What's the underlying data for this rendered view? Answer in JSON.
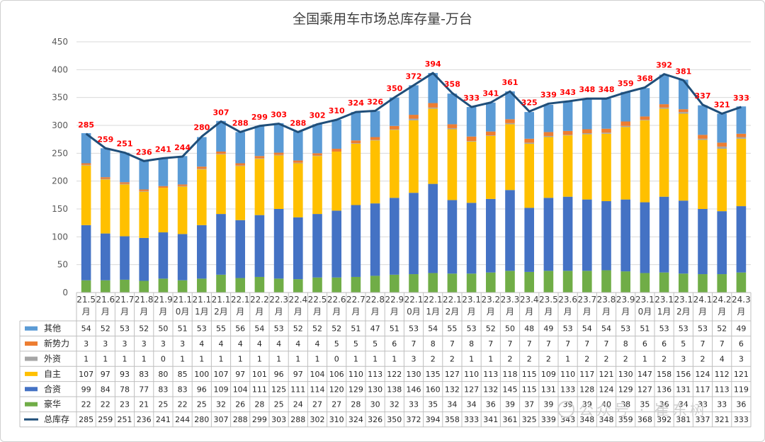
{
  "chart_data": {
    "type": "bar",
    "stacked": true,
    "title": "全国乘用车市场总库存量-万台",
    "ylim": [
      0,
      450
    ],
    "yticks": [
      0,
      50,
      100,
      150,
      200,
      250,
      300,
      350,
      400,
      450
    ],
    "grid": true,
    "legend_placement": "data table below chart",
    "categories": [
      [
        "21.5",
        "月"
      ],
      [
        "21.6",
        "月"
      ],
      [
        "21.7",
        "月"
      ],
      [
        "21.8",
        "月"
      ],
      [
        "21.9",
        "月"
      ],
      [
        "21.1",
        "0月"
      ],
      [
        "21.1",
        "1月"
      ],
      [
        "21.1",
        "2月"
      ],
      [
        "22.1",
        "月"
      ],
      [
        "22.2",
        "月"
      ],
      [
        "22.3",
        "月"
      ],
      [
        "22.4",
        "月"
      ],
      [
        "22.5",
        "月"
      ],
      [
        "22.6",
        "月"
      ],
      [
        "22.7",
        "月"
      ],
      [
        "22.8",
        "月"
      ],
      [
        "22.9",
        "月"
      ],
      [
        "22.1",
        "0月"
      ],
      [
        "22.1",
        "1月"
      ],
      [
        "22.1",
        "2月"
      ],
      [
        "23.1",
        "月"
      ],
      [
        "23.2",
        "月"
      ],
      [
        "23.3",
        "月"
      ],
      [
        "23.4",
        "月"
      ],
      [
        "23.5",
        "月"
      ],
      [
        "23.6",
        "月"
      ],
      [
        "23.7",
        "月"
      ],
      [
        "23.8",
        "月"
      ],
      [
        "23.9",
        "月"
      ],
      [
        "23.1",
        "0月"
      ],
      [
        "23.1",
        "1月"
      ],
      [
        "23.1",
        "2月"
      ],
      [
        "24.1",
        "月"
      ],
      [
        "24.2",
        "月"
      ],
      [
        "24.3",
        "月"
      ]
    ],
    "series": [
      {
        "name": "豪华",
        "color": "#70ad47",
        "values": [
          22,
          22,
          23,
          21,
          25,
          22,
          25,
          32,
          26,
          28,
          25,
          24,
          27,
          27,
          28,
          30,
          32,
          33,
          35,
          34,
          34,
          36,
          39,
          37,
          39,
          39,
          39,
          40,
          38,
          35,
          36,
          34,
          33,
          33,
          36
        ]
      },
      {
        "name": "合资",
        "color": "#4472c4",
        "values": [
          99,
          84,
          78,
          77,
          83,
          83,
          96,
          109,
          104,
          111,
          125,
          111,
          114,
          120,
          129,
          130,
          138,
          146,
          160,
          132,
          127,
          132,
          145,
          115,
          131,
          133,
          128,
          124,
          129,
          127,
          136,
          131,
          117,
          113,
          119
        ]
      },
      {
        "name": "自主",
        "color": "#ffc000",
        "values": [
          107,
          97,
          93,
          83,
          80,
          85,
          100,
          107,
          97,
          101,
          96,
          97,
          104,
          106,
          110,
          113,
          122,
          130,
          135,
          127,
          110,
          113,
          118,
          115,
          109,
          110,
          117,
          121,
          130,
          147,
          158,
          156,
          124,
          112,
          121
        ]
      },
      {
        "name": "外资",
        "color": "#a5a5a5",
        "values": [
          1,
          1,
          1,
          1,
          0,
          1,
          1,
          1,
          1,
          1,
          1,
          1,
          1,
          0,
          1,
          1,
          1,
          3,
          2,
          2,
          1,
          1,
          2,
          2,
          2,
          1,
          2,
          2,
          2,
          1,
          2,
          3,
          2,
          4,
          3
        ]
      },
      {
        "name": "新势力",
        "color": "#ed7d31",
        "values": [
          3,
          3,
          3,
          3,
          3,
          3,
          4,
          4,
          4,
          4,
          4,
          4,
          4,
          5,
          5,
          5,
          6,
          7,
          8,
          7,
          8,
          7,
          7,
          7,
          7,
          7,
          7,
          7,
          8,
          6,
          6,
          5,
          7,
          7,
          6
        ]
      },
      {
        "name": "其他",
        "color": "#5b9bd5",
        "values": [
          54,
          52,
          53,
          52,
          50,
          51,
          53,
          55,
          56,
          54,
          53,
          52,
          52,
          52,
          51,
          47,
          51,
          53,
          54,
          55,
          53,
          52,
          50,
          48,
          49,
          53,
          54,
          54,
          53,
          51,
          53,
          53,
          53,
          52,
          49
        ]
      }
    ],
    "line": {
      "name": "总库存",
      "color": "#1f4e79",
      "values": [
        285,
        259,
        251,
        236,
        241,
        244,
        280,
        307,
        288,
        299,
        303,
        288,
        302,
        310,
        324,
        326,
        350,
        372,
        394,
        358,
        333,
        341,
        361,
        325,
        339,
        343,
        348,
        348,
        359,
        368,
        392,
        381,
        337,
        321,
        333
      ]
    },
    "table_row_order": [
      "其他",
      "新势力",
      "外资",
      "自主",
      "合资",
      "豪华",
      "总库存"
    ]
  },
  "watermark": {
    "text": "公众号 · 崔东树"
  }
}
